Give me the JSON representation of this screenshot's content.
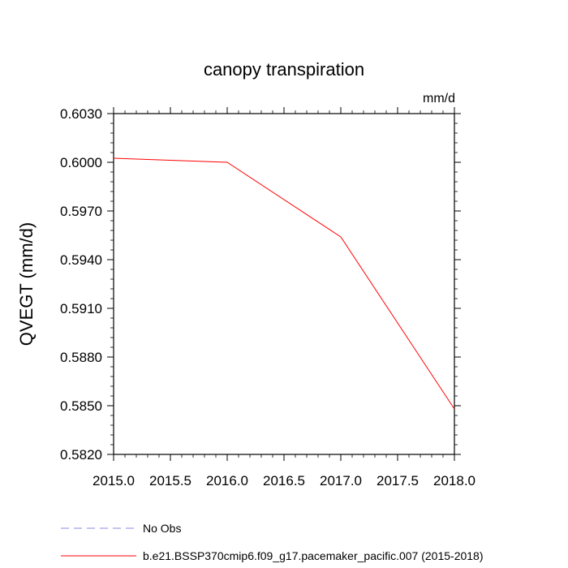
{
  "chart_data": {
    "type": "line",
    "title": "canopy transpiration",
    "units": "mm/d",
    "ylabel": "QVEGT  (mm/d)",
    "xlim": [
      2015.0,
      2018.0
    ],
    "ylim": [
      0.582,
      0.603
    ],
    "x_ticks": [
      "2015.0",
      "2015.5",
      "2016.0",
      "2016.5",
      "2017.0",
      "2017.5",
      "2018.0"
    ],
    "y_ticks": [
      "0.6030",
      "0.6000",
      "0.5970",
      "0.5940",
      "0.5910",
      "0.5880",
      "0.5850",
      "0.5820"
    ],
    "grid": false,
    "series": [
      {
        "name": "b.e21.BSSP370cmip6.f09_g17.pacemaker_pacific.007 (2015-2018)",
        "color": "#ff0000",
        "x": [
          2015.0,
          2016.0,
          2017.0,
          2018.0
        ],
        "y": [
          0.60025,
          0.6,
          0.5954,
          0.5848
        ]
      }
    ],
    "legend": {
      "placement": "bottom",
      "entries": [
        {
          "label": "No Obs",
          "color": "#8a8ae6",
          "dashed": true
        },
        {
          "label": "b.e21.BSSP370cmip6.f09_g17.pacemaker_pacific.007 (2015-2018)",
          "color": "#ff0000",
          "dashed": false
        }
      ]
    }
  }
}
